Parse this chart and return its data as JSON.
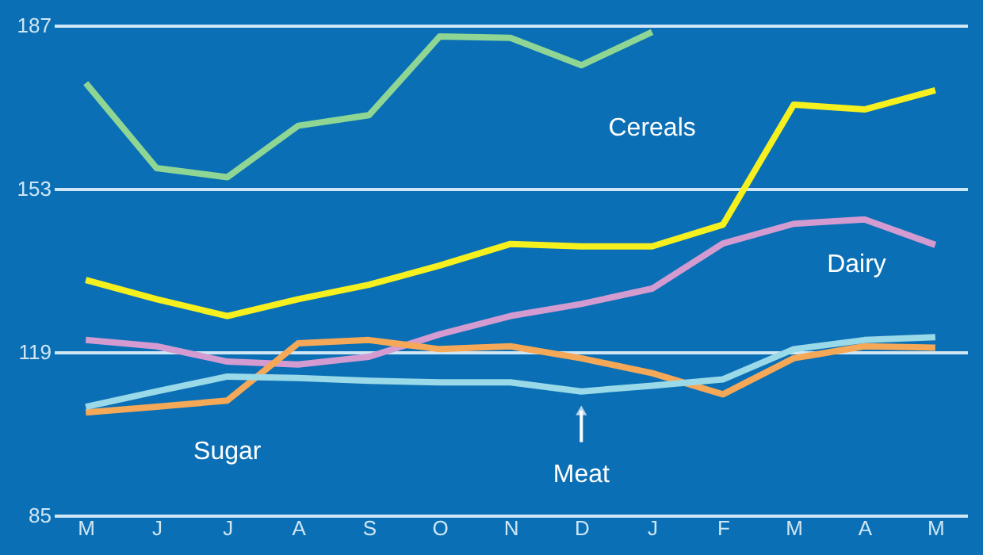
{
  "chart_data": {
    "type": "line",
    "categories": [
      "M",
      "J",
      "J",
      "A",
      "S",
      "O",
      "N",
      "D",
      "J",
      "F",
      "M",
      "A",
      "M"
    ],
    "ylim": [
      85,
      187
    ],
    "yticks": [
      85,
      119,
      153,
      187
    ],
    "grid": "y",
    "marker": "none",
    "line_style": "solid",
    "series": [
      {
        "color": "#8fd694",
        "values": [
          175,
          157.3,
          155.4,
          166.1,
          168.3,
          184.7,
          184.4,
          178.7,
          185.6,
          null,
          null,
          null,
          null
        ]
      },
      {
        "name": "Cereals",
        "color": "#f5f01e",
        "values": [
          134,
          130,
          126.5,
          130,
          133,
          137,
          141.5,
          141,
          141,
          145.5,
          170.5,
          169.5,
          173.5
        ]
      },
      {
        "name": "Dairy",
        "color": "#d39bd0",
        "values": [
          121.5,
          120.2,
          117,
          116.4,
          118,
          122.7,
          126.5,
          129,
          132.2,
          141.6,
          145.7,
          146.6,
          141.3
        ]
      },
      {
        "name": "Sugar",
        "color": "#f5a857",
        "values": [
          106.4,
          107.6,
          108.9,
          120.8,
          121.5,
          119.6,
          120.2,
          117.7,
          114.6,
          110.2,
          117.7,
          120.2,
          119.9
        ]
      },
      {
        "name": "Meat",
        "color": "#9ad9e8",
        "values": [
          107.6,
          110.8,
          113.9,
          113.6,
          113,
          112.7,
          112.7,
          110.8,
          112,
          113.3,
          119.6,
          121.5,
          122.1
        ]
      }
    ]
  }
}
